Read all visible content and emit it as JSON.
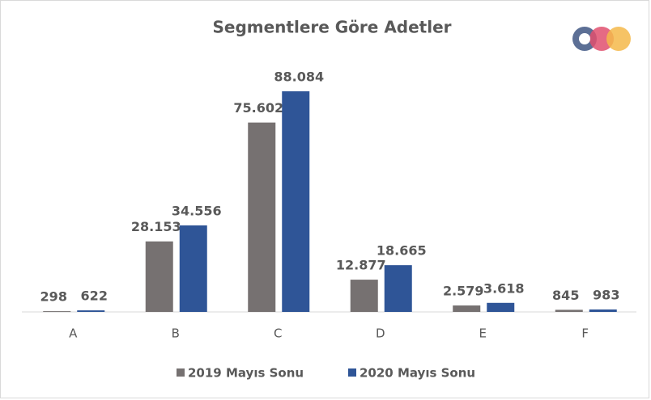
{
  "chart_data": {
    "type": "bar",
    "title": "Segmentlere Göre Adetler",
    "categories": [
      "A",
      "B",
      "C",
      "D",
      "E",
      "F"
    ],
    "series": [
      {
        "name": "2019 Mayıs Sonu",
        "color": "#767171",
        "values": [
          298,
          28153,
          75602,
          12877,
          2579,
          845
        ],
        "value_labels": [
          "298",
          "28.153",
          "75.602",
          "12.877",
          "2.579",
          "845"
        ]
      },
      {
        "name": "2020 Mayıs Sonu",
        "color": "#2f5597",
        "values": [
          622,
          34556,
          88084,
          18665,
          3618,
          983
        ],
        "value_labels": [
          "622",
          "34.556",
          "88.084",
          "18.665",
          "3.618",
          "983"
        ]
      }
    ],
    "ylim": [
      0,
      100000
    ],
    "legend": "bottom"
  }
}
